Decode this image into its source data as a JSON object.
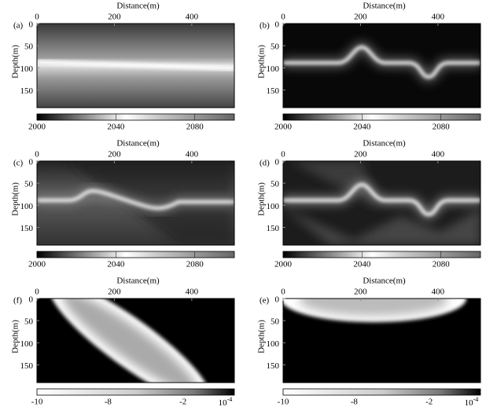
{
  "panels": [
    {
      "label": "(a)",
      "x_label": "Distance(m)",
      "y_label": "Depth(m)",
      "xlim": [
        0,
        510
      ],
      "ylim": [
        0,
        190
      ],
      "xticks": [
        0,
        200,
        400
      ],
      "yticks": [
        0,
        50,
        100,
        150
      ]
    },
    {
      "label": "(b)",
      "x_label": "Distance(m)",
      "y_label": "Depth(m)",
      "xlim": [
        0,
        510
      ],
      "ylim": [
        0,
        190
      ],
      "xticks": [
        0,
        200,
        400
      ],
      "yticks": [
        0,
        50,
        100,
        150
      ]
    },
    {
      "label": "(c)",
      "x_label": "Distance(m)",
      "y_label": "Depth(m)",
      "xlim": [
        0,
        510
      ],
      "ylim": [
        0,
        190
      ],
      "xticks": [
        0,
        200,
        400
      ],
      "yticks": [
        0,
        50,
        100,
        150
      ]
    },
    {
      "label": "(d)",
      "x_label": "Distance(m)",
      "y_label": "Depth(m)",
      "xlim": [
        0,
        510
      ],
      "ylim": [
        0,
        190
      ],
      "xticks": [
        0,
        200,
        400
      ],
      "yticks": [
        0,
        50,
        100,
        150
      ]
    },
    {
      "label": "(f)",
      "x_label": "Distance(m)",
      "y_label": "Depth(m)",
      "xlim": [
        0,
        510
      ],
      "ylim": [
        0,
        190
      ],
      "xticks": [
        0,
        200,
        400
      ],
      "yticks": [
        0,
        50,
        100,
        150
      ]
    },
    {
      "label": "(e)",
      "x_label": "Distance(m)",
      "y_label": "Depth(m)",
      "xlim": [
        0,
        510
      ],
      "ylim": [
        0,
        190
      ],
      "xticks": [
        0,
        200,
        400
      ],
      "yticks": [
        0,
        50,
        100,
        150
      ]
    }
  ],
  "colorbars": [
    {
      "lim": [
        2000,
        2100
      ],
      "ticks": [
        2000,
        2040,
        2080
      ]
    },
    {
      "lim": [
        2000,
        2100
      ],
      "ticks": [
        2000,
        2040,
        2080
      ]
    },
    {
      "lim": [
        2000,
        2100
      ],
      "ticks": [
        2000,
        2040,
        2080
      ]
    },
    {
      "lim": [
        2000,
        2100
      ],
      "ticks": [
        2000,
        2040,
        2080
      ]
    },
    {
      "ticks": [
        "-10",
        "-8",
        "-2",
        {
          "base": "10",
          "exp": "-4"
        }
      ]
    },
    {
      "ticks": [
        "-10",
        "-8",
        "-2",
        {
          "base": "10",
          "exp": "-4"
        }
      ]
    }
  ]
}
